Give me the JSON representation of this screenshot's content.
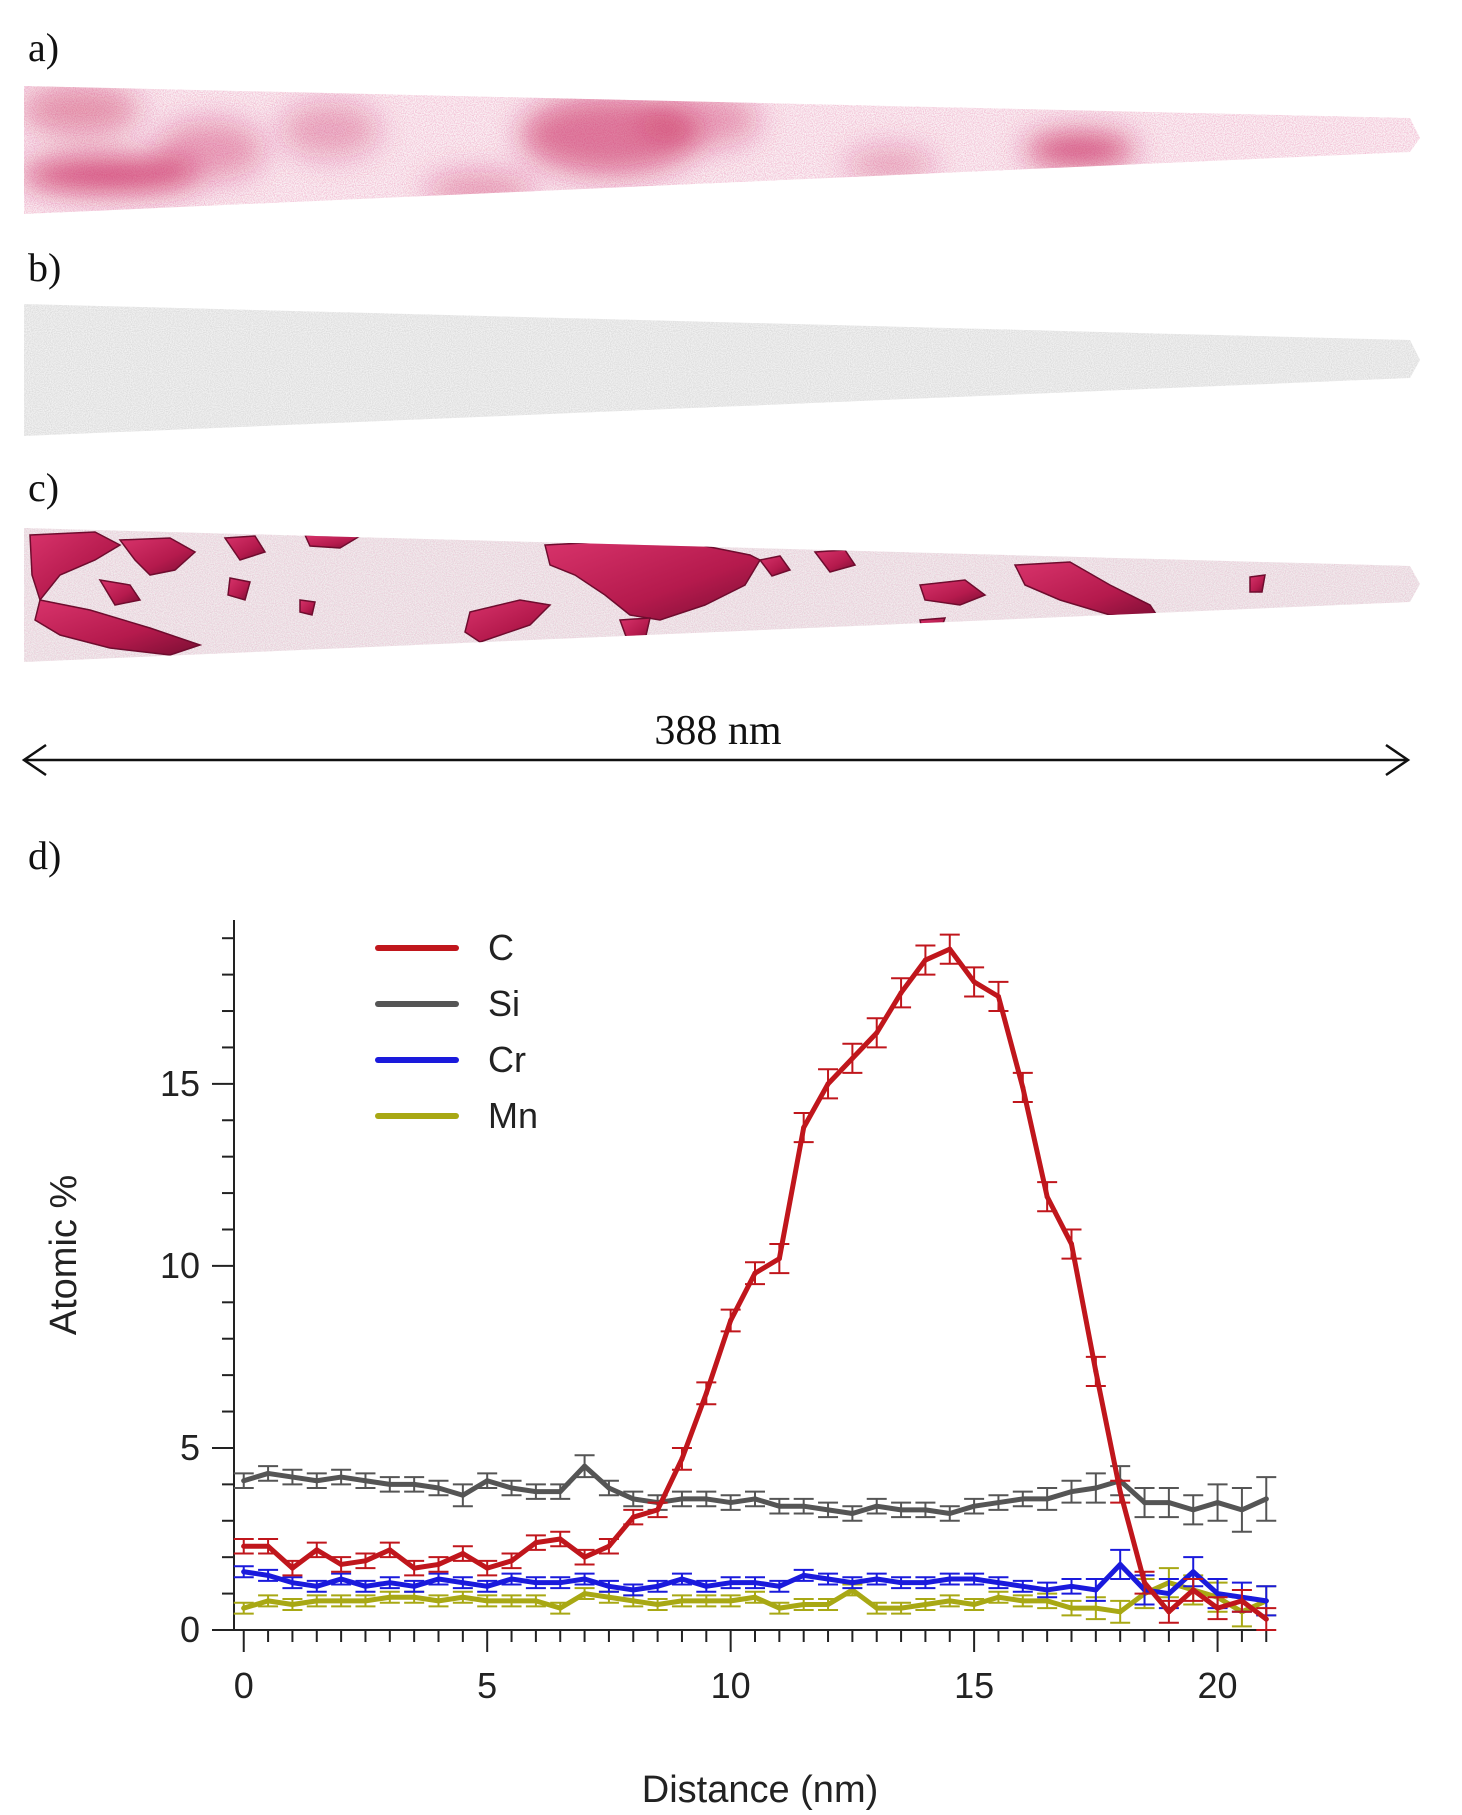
{
  "panels": {
    "a": "a)",
    "b": "b)",
    "c": "c)",
    "d": "d)"
  },
  "scale_bar": {
    "label": "388 nm"
  },
  "colors": {
    "carbon_pink": "#c8235a",
    "carbon_dark": "#a01545",
    "matrix_grey": "#b8b8b8",
    "C": "#c0161c",
    "Si": "#555555",
    "Cr": "#1a1adc",
    "Mn": "#a8a814"
  },
  "chart_data": {
    "type": "line",
    "xlabel": "Distance (nm)",
    "ylabel": "Atomic %",
    "xlim": [
      -0.2,
      21.2
    ],
    "ylim": [
      0,
      19.5
    ],
    "xticks": [
      "0",
      "5",
      "10",
      "15",
      "20"
    ],
    "yticks": [
      "0",
      "5",
      "10",
      "15"
    ],
    "legend": [
      "C",
      "Si",
      "Cr",
      "Mn"
    ],
    "legend_position": "top-left",
    "x": [
      0,
      0.5,
      1,
      1.5,
      2,
      2.5,
      3,
      3.5,
      4,
      4.5,
      5,
      5.5,
      6,
      6.5,
      7,
      7.5,
      8,
      8.5,
      9,
      9.5,
      10,
      10.5,
      11,
      11.5,
      12,
      12.5,
      13,
      13.5,
      14,
      14.5,
      15,
      15.5,
      16,
      16.5,
      17,
      17.5,
      18,
      18.5,
      19,
      19.5,
      20,
      20.5,
      21
    ],
    "series": [
      {
        "name": "C",
        "values": [
          2.3,
          2.3,
          1.7,
          2.2,
          1.8,
          1.9,
          2.2,
          1.7,
          1.8,
          2.1,
          1.7,
          1.9,
          2.4,
          2.5,
          2.0,
          2.3,
          3.1,
          3.3,
          4.7,
          6.5,
          8.5,
          9.8,
          10.2,
          13.8,
          15.0,
          15.7,
          16.4,
          17.5,
          18.4,
          18.7,
          17.8,
          17.4,
          14.9,
          11.9,
          10.6,
          7.1,
          3.8,
          1.3,
          0.5,
          1.1,
          0.6,
          0.8,
          0.3
        ],
        "err": [
          0.2,
          0.2,
          0.2,
          0.2,
          0.2,
          0.2,
          0.2,
          0.2,
          0.2,
          0.2,
          0.2,
          0.2,
          0.2,
          0.2,
          0.2,
          0.2,
          0.2,
          0.2,
          0.3,
          0.3,
          0.3,
          0.3,
          0.4,
          0.4,
          0.4,
          0.4,
          0.4,
          0.4,
          0.4,
          0.4,
          0.4,
          0.4,
          0.4,
          0.4,
          0.4,
          0.4,
          0.3,
          0.3,
          0.3,
          0.3,
          0.3,
          0.3,
          0.3
        ]
      },
      {
        "name": "Si",
        "values": [
          4.1,
          4.3,
          4.2,
          4.1,
          4.2,
          4.1,
          4.0,
          4.0,
          3.9,
          3.7,
          4.1,
          3.9,
          3.8,
          3.8,
          4.5,
          3.9,
          3.6,
          3.5,
          3.6,
          3.6,
          3.5,
          3.6,
          3.4,
          3.4,
          3.3,
          3.2,
          3.4,
          3.3,
          3.3,
          3.2,
          3.4,
          3.5,
          3.6,
          3.6,
          3.8,
          3.9,
          4.1,
          3.5,
          3.5,
          3.3,
          3.5,
          3.3,
          3.6
        ],
        "err": [
          0.2,
          0.2,
          0.2,
          0.2,
          0.2,
          0.2,
          0.2,
          0.2,
          0.2,
          0.3,
          0.2,
          0.2,
          0.2,
          0.2,
          0.3,
          0.2,
          0.2,
          0.2,
          0.2,
          0.2,
          0.2,
          0.2,
          0.2,
          0.2,
          0.2,
          0.2,
          0.2,
          0.2,
          0.2,
          0.2,
          0.2,
          0.2,
          0.2,
          0.3,
          0.3,
          0.4,
          0.4,
          0.4,
          0.4,
          0.4,
          0.5,
          0.6,
          0.6
        ]
      },
      {
        "name": "Cr",
        "values": [
          1.6,
          1.5,
          1.3,
          1.2,
          1.4,
          1.2,
          1.3,
          1.2,
          1.4,
          1.3,
          1.2,
          1.4,
          1.3,
          1.3,
          1.4,
          1.2,
          1.1,
          1.2,
          1.4,
          1.2,
          1.3,
          1.3,
          1.2,
          1.5,
          1.4,
          1.3,
          1.4,
          1.3,
          1.3,
          1.4,
          1.4,
          1.3,
          1.2,
          1.1,
          1.2,
          1.1,
          1.8,
          1.1,
          1.0,
          1.6,
          1.0,
          0.9,
          0.8
        ],
        "err": [
          0.15,
          0.15,
          0.15,
          0.15,
          0.15,
          0.15,
          0.15,
          0.15,
          0.15,
          0.15,
          0.15,
          0.15,
          0.15,
          0.15,
          0.15,
          0.15,
          0.15,
          0.15,
          0.15,
          0.15,
          0.15,
          0.15,
          0.15,
          0.15,
          0.15,
          0.15,
          0.15,
          0.15,
          0.15,
          0.15,
          0.15,
          0.15,
          0.15,
          0.2,
          0.2,
          0.3,
          0.4,
          0.4,
          0.4,
          0.4,
          0.4,
          0.4,
          0.4
        ]
      },
      {
        "name": "Mn",
        "values": [
          0.6,
          0.8,
          0.7,
          0.8,
          0.8,
          0.8,
          0.9,
          0.9,
          0.8,
          0.9,
          0.8,
          0.8,
          0.8,
          0.6,
          1.0,
          0.9,
          0.8,
          0.7,
          0.8,
          0.8,
          0.8,
          0.9,
          0.6,
          0.7,
          0.7,
          1.1,
          0.6,
          0.6,
          0.7,
          0.8,
          0.7,
          0.9,
          0.8,
          0.8,
          0.6,
          0.6,
          0.5,
          1.0,
          1.3,
          1.1,
          0.9,
          0.5,
          0.8
        ],
        "err": [
          0.15,
          0.15,
          0.15,
          0.15,
          0.15,
          0.15,
          0.15,
          0.15,
          0.15,
          0.15,
          0.15,
          0.15,
          0.15,
          0.15,
          0.15,
          0.15,
          0.15,
          0.15,
          0.15,
          0.15,
          0.15,
          0.15,
          0.15,
          0.15,
          0.15,
          0.15,
          0.15,
          0.15,
          0.15,
          0.15,
          0.15,
          0.15,
          0.15,
          0.2,
          0.2,
          0.3,
          0.3,
          0.4,
          0.4,
          0.4,
          0.4,
          0.4,
          0.4
        ]
      }
    ]
  }
}
